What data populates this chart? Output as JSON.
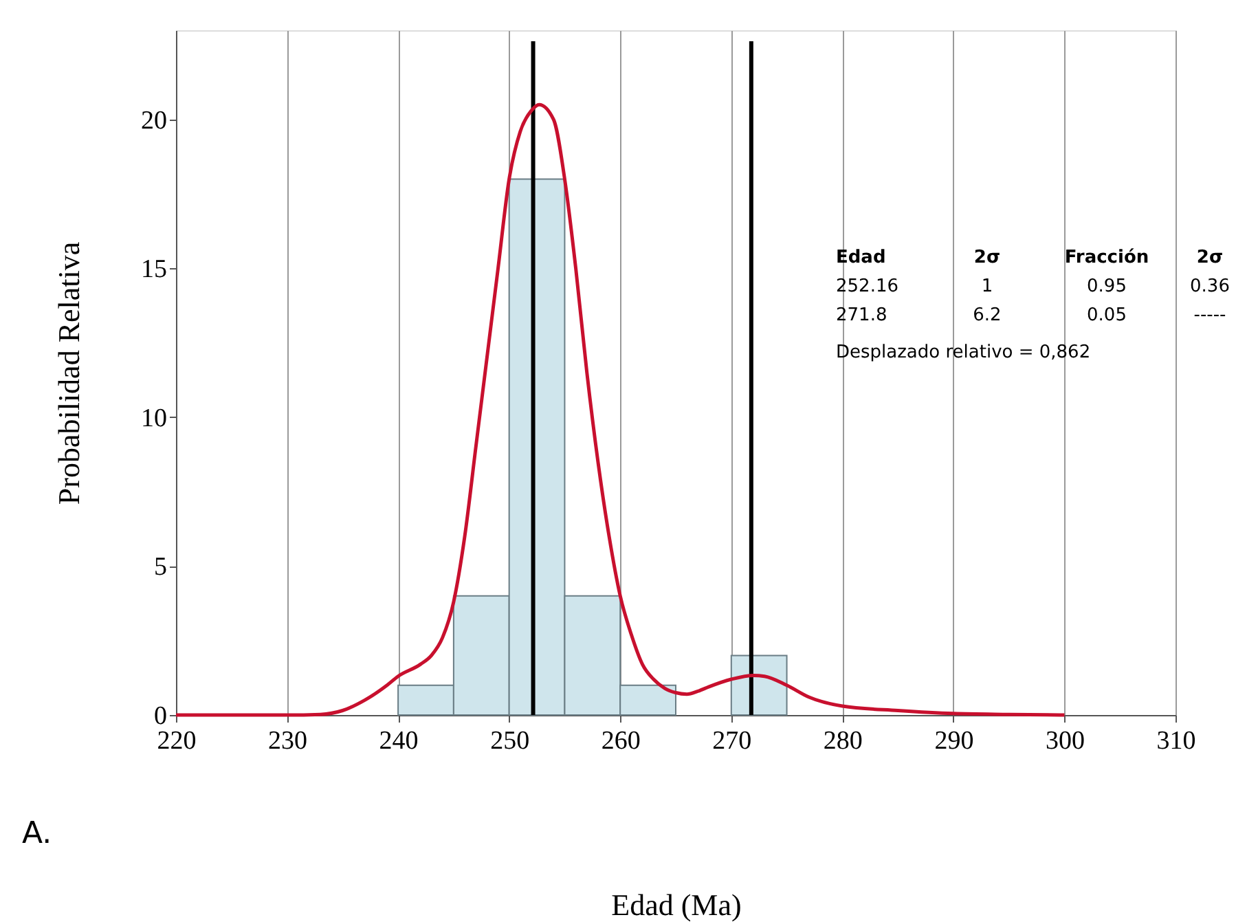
{
  "chart_data": {
    "type": "histogram",
    "xlabel": "Edad (Ma)",
    "ylabel": "Probabilidad Relativa",
    "bins": [
      240,
      245,
      250,
      255,
      260,
      265,
      270,
      275
    ],
    "values": [
      1,
      4,
      18,
      4,
      1,
      0,
      2
    ],
    "color": "#cfe5ec",
    "series": [
      {
        "type": "line",
        "color": "#c8102e",
        "x": [
          220,
          230,
          233,
          235,
          237,
          239,
          240,
          242,
          243,
          244,
          245,
          246,
          247,
          248,
          249,
          250,
          251,
          252,
          252.7,
          254,
          255,
          256,
          257,
          258,
          259,
          260,
          261,
          262,
          263,
          264,
          265,
          266,
          267,
          268,
          270,
          272,
          273,
          275,
          277,
          280,
          285,
          290,
          295,
          300
        ],
        "values": [
          0,
          0,
          0.02,
          0.15,
          0.5,
          1.0,
          1.3,
          1.7,
          2.0,
          2.6,
          3.8,
          6,
          9,
          12,
          15,
          18,
          19.6,
          20.3,
          20.5,
          20.0,
          18,
          15,
          11.5,
          8.5,
          6,
          4,
          2.7,
          1.7,
          1.2,
          0.9,
          0.75,
          0.7,
          0.8,
          0.95,
          1.2,
          1.33,
          1.3,
          1.0,
          0.6,
          0.3,
          0.15,
          0.05,
          0.02,
          0
        ]
      }
    ],
    "ref_lines": [
      {
        "axis": "x",
        "value": 252.16,
        "color": "#000000"
      },
      {
        "axis": "x",
        "value": 271.8,
        "color": "#000000"
      }
    ],
    "xlim": [
      220,
      310
    ],
    "xticks": [
      220,
      230,
      240,
      250,
      260,
      270,
      280,
      290,
      300,
      310
    ],
    "ylim": [
      0,
      23
    ],
    "yticks": [
      0,
      5,
      10,
      15,
      20
    ],
    "grid": "x",
    "annotations": [
      "Edad",
      "2σ",
      "Fracción",
      "2σ",
      "252.16",
      "1",
      "0.95",
      "0.36",
      "271.8",
      "6.2",
      "0.05",
      "-----",
      "Desplazado relativo = 0,862",
      "A."
    ]
  }
}
